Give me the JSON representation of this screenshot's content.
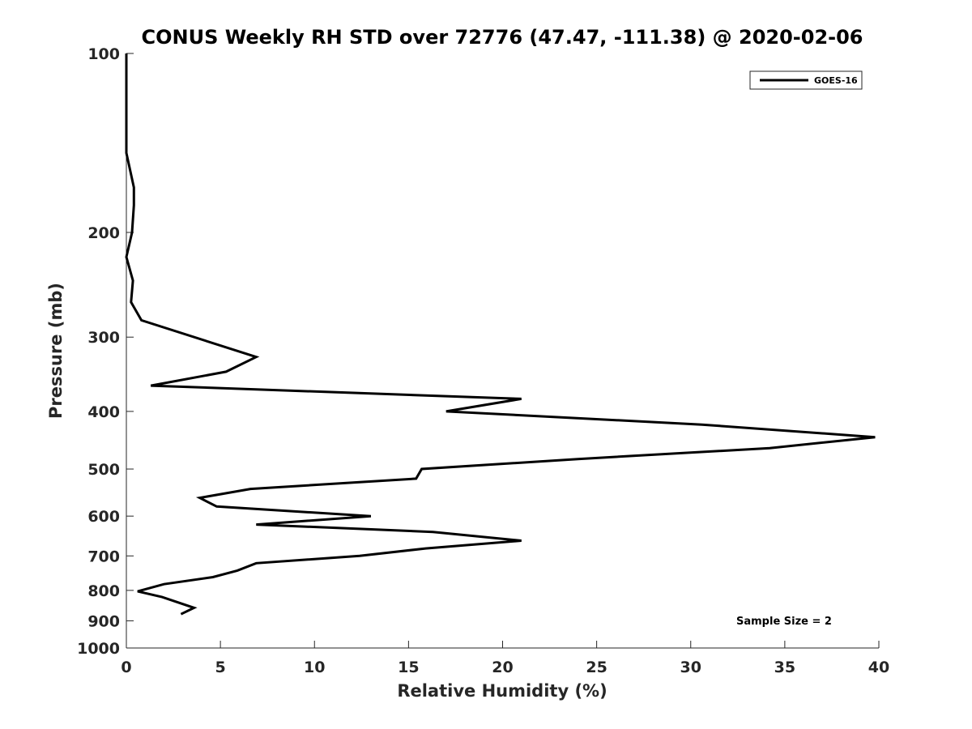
{
  "chart_data": {
    "type": "line",
    "title": "CONUS Weekly RH STD over 72776 (47.47, -111.38) @ 2020-02-06",
    "xlabel": "Relative Humidity (%)",
    "ylabel": "Pressure (mb)",
    "xlim": [
      0,
      40
    ],
    "ylim": [
      1000,
      100
    ],
    "yscale": "log",
    "x_ticks": [
      0,
      5,
      10,
      15,
      20,
      25,
      30,
      35,
      40
    ],
    "y_ticks": [
      100,
      200,
      300,
      400,
      500,
      600,
      700,
      800,
      900,
      1000
    ],
    "legend_position": "top-right",
    "series": [
      {
        "name": "GOES-16",
        "color": "#000000",
        "points": [
          {
            "rh": 0.0,
            "p": 100
          },
          {
            "rh": 0.0,
            "p": 147
          },
          {
            "rh": 0.4,
            "p": 168
          },
          {
            "rh": 0.4,
            "p": 180
          },
          {
            "rh": 0.3,
            "p": 200
          },
          {
            "rh": 0.0,
            "p": 220
          },
          {
            "rh": 0.35,
            "p": 241
          },
          {
            "rh": 0.25,
            "p": 262
          },
          {
            "rh": 0.8,
            "p": 281
          },
          {
            "rh": 6.9,
            "p": 324
          },
          {
            "rh": 5.3,
            "p": 343
          },
          {
            "rh": 1.3,
            "p": 362
          },
          {
            "rh": 21.0,
            "p": 381
          },
          {
            "rh": 17.0,
            "p": 400
          },
          {
            "rh": 30.6,
            "p": 421
          },
          {
            "rh": 39.8,
            "p": 442
          },
          {
            "rh": 34.2,
            "p": 461
          },
          {
            "rh": 24.0,
            "p": 481
          },
          {
            "rh": 15.7,
            "p": 500
          },
          {
            "rh": 15.4,
            "p": 519
          },
          {
            "rh": 6.6,
            "p": 540
          },
          {
            "rh": 3.9,
            "p": 559
          },
          {
            "rh": 4.8,
            "p": 578
          },
          {
            "rh": 13.0,
            "p": 600
          },
          {
            "rh": 6.9,
            "p": 620
          },
          {
            "rh": 16.3,
            "p": 638
          },
          {
            "rh": 21.0,
            "p": 660
          },
          {
            "rh": 15.9,
            "p": 680
          },
          {
            "rh": 12.4,
            "p": 700
          },
          {
            "rh": 6.9,
            "p": 720
          },
          {
            "rh": 5.9,
            "p": 741
          },
          {
            "rh": 4.6,
            "p": 760
          },
          {
            "rh": 2.0,
            "p": 781
          },
          {
            "rh": 0.6,
            "p": 803
          },
          {
            "rh": 1.9,
            "p": 821
          },
          {
            "rh": 3.6,
            "p": 856
          },
          {
            "rh": 2.9,
            "p": 877
          }
        ]
      }
    ],
    "annotations": [
      {
        "text": "Sample Size = 2"
      }
    ]
  }
}
